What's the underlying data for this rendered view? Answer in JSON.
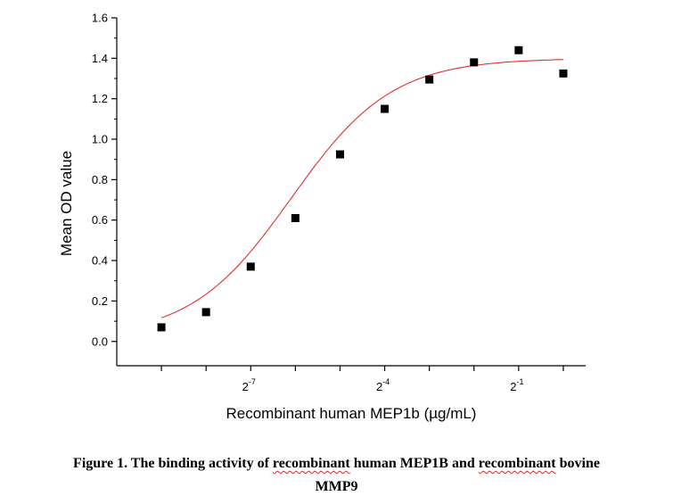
{
  "chart_data": {
    "type": "scatter",
    "title": "",
    "xlabel": "Recombinant human MEP1b (µg/mL)",
    "ylabel": "Mean OD value",
    "xscale": "log2",
    "xlim_log2": [
      -10,
      0.5
    ],
    "ylim": [
      -0.12,
      1.6
    ],
    "y_ticks": [
      0.0,
      0.2,
      0.4,
      0.6,
      0.8,
      1.0,
      1.2,
      1.4,
      1.6
    ],
    "y_tick_labels": [
      "0.0",
      "0.2",
      "0.4",
      "0.6",
      "0.8",
      "1.0",
      "1.2",
      "1.4",
      "1.6"
    ],
    "x_major_tick_labels": [
      {
        "base": "2",
        "exp": "-7",
        "log2": -7
      },
      {
        "base": "2",
        "exp": "-4",
        "log2": -4
      },
      {
        "base": "2",
        "exp": "-1",
        "log2": -1
      }
    ],
    "x_minor_ticks_log2": [
      -9,
      -8,
      -6,
      -5,
      -3,
      -2,
      0
    ],
    "grid": false,
    "legend": "none",
    "series": [
      {
        "marker": "square",
        "color": "#000000",
        "points": [
          {
            "x": 0.001953125,
            "y": 0.07
          },
          {
            "x": 0.00390625,
            "y": 0.145
          },
          {
            "x": 0.0078125,
            "y": 0.37
          },
          {
            "x": 0.015625,
            "y": 0.61
          },
          {
            "x": 0.03125,
            "y": 0.925
          },
          {
            "x": 0.0625,
            "y": 1.15
          },
          {
            "x": 0.125,
            "y": 1.295
          },
          {
            "x": 0.25,
            "y": 1.38
          },
          {
            "x": 0.5,
            "y": 1.44
          },
          {
            "x": 1.0,
            "y": 1.325
          }
        ]
      }
    ],
    "fit_curve": {
      "model": "4PL",
      "color": "#e03030",
      "bottom": 0.02,
      "top": 1.4,
      "ec50": 0.0147,
      "hill": 1.28,
      "x_start": 0.001953125,
      "x_end": 1.0
    }
  },
  "caption": {
    "prefix": "Figure 1. The binding activity of ",
    "term1": "recombinant",
    "middle": " human MEP1B and ",
    "term2": "recombinant",
    "suffix": " bovine",
    "line2": "MMP9"
  }
}
